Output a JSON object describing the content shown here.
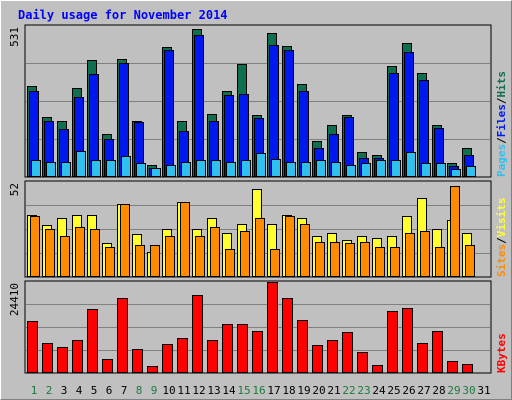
{
  "title": "Daily usage for November 2014",
  "colors": {
    "title": "#0000ff",
    "hits": "#0f6f4f",
    "files": "#0018f0",
    "pages": "#30c0f0",
    "visits": "#ffff30",
    "sites": "#ff8c00",
    "kbytes": "#ff0000",
    "weekend_day": "#1d7a3d",
    "weekday": "#000000"
  },
  "chart_data": [
    {
      "type": "bar",
      "name": "hits-files-pages",
      "ymax_label": "531",
      "ylim": [
        0,
        531
      ],
      "axis_words": [
        "Pages",
        "/",
        "Files",
        "/",
        "Hits"
      ],
      "categories": [
        "1",
        "2",
        "3",
        "4",
        "5",
        "6",
        "7",
        "8",
        "9",
        "10",
        "11",
        "12",
        "13",
        "14",
        "15",
        "16",
        "17",
        "18",
        "19",
        "20",
        "21",
        "22",
        "23",
        "24",
        "25",
        "26",
        "27",
        "28",
        "29",
        "30",
        "31"
      ],
      "series": [
        {
          "key": "hits",
          "values": [
            320,
            210,
            195,
            310,
            410,
            150,
            415,
            195,
            40,
            455,
            195,
            520,
            220,
            300,
            395,
            215,
            505,
            460,
            325,
            125,
            180,
            215,
            85,
            75,
            390,
            470,
            365,
            180,
            45,
            100,
            0
          ]
        },
        {
          "key": "files",
          "values": [
            300,
            195,
            165,
            280,
            360,
            130,
            400,
            190,
            30,
            445,
            160,
            500,
            195,
            285,
            290,
            205,
            465,
            445,
            300,
            100,
            150,
            210,
            65,
            65,
            365,
            440,
            340,
            170,
            35,
            75,
            0
          ]
        },
        {
          "key": "pages",
          "values": [
            55,
            50,
            50,
            90,
            55,
            55,
            70,
            45,
            30,
            40,
            50,
            55,
            55,
            50,
            55,
            80,
            60,
            50,
            50,
            55,
            50,
            40,
            45,
            55,
            55,
            85,
            45,
            45,
            25,
            35,
            0
          ]
        }
      ]
    },
    {
      "type": "bar",
      "name": "visits-sites",
      "ymax_label": "52",
      "ylim": [
        0,
        52
      ],
      "axis_words": [
        "Sites",
        "/",
        "Visits"
      ],
      "categories": [
        "1",
        "2",
        "3",
        "4",
        "5",
        "6",
        "7",
        "8",
        "9",
        "10",
        "11",
        "12",
        "13",
        "14",
        "15",
        "16",
        "17",
        "18",
        "19",
        "20",
        "21",
        "22",
        "23",
        "24",
        "25",
        "26",
        "27",
        "28",
        "29",
        "30",
        "31"
      ],
      "series": [
        {
          "key": "visits",
          "values": [
            34,
            28,
            32,
            34,
            34,
            18,
            40,
            23,
            13,
            26,
            41,
            26,
            32,
            24,
            29,
            48,
            29,
            34,
            32,
            22,
            24,
            20,
            22,
            21,
            22,
            33,
            43,
            26,
            31,
            24,
            0
          ]
        },
        {
          "key": "sites",
          "values": [
            33,
            26,
            22,
            27,
            26,
            16,
            40,
            17,
            17,
            22,
            41,
            22,
            27,
            15,
            25,
            32,
            15,
            33,
            29,
            19,
            19,
            18,
            19,
            16,
            16,
            24,
            25,
            16,
            50,
            17,
            0
          ]
        }
      ]
    },
    {
      "type": "bar",
      "name": "kbytes",
      "ymax_label": "24410",
      "ylim": [
        0,
        24410
      ],
      "axis_words": [
        "KBytes"
      ],
      "categories": [
        "1",
        "2",
        "3",
        "4",
        "5",
        "6",
        "7",
        "8",
        "9",
        "10",
        "11",
        "12",
        "13",
        "14",
        "15",
        "16",
        "17",
        "18",
        "19",
        "20",
        "21",
        "22",
        "23",
        "24",
        "25",
        "26",
        "27",
        "28",
        "29",
        "30",
        "31"
      ],
      "series": [
        {
          "key": "kbytes",
          "values": [
            13700,
            8000,
            6900,
            8600,
            17100,
            3500,
            20100,
            6300,
            1700,
            7600,
            9300,
            21000,
            8600,
            13000,
            12900,
            11000,
            24410,
            20000,
            14200,
            7200,
            8600,
            10800,
            5300,
            2000,
            16600,
            17300,
            8000,
            11200,
            3100,
            2200,
            0
          ]
        }
      ]
    }
  ]
}
